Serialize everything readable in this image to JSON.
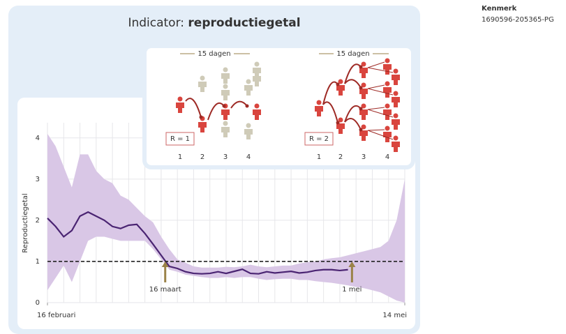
{
  "header": {
    "title": "Indicator:",
    "title_emphasis": "reproductiegetal",
    "ref_label": "Kenmerk",
    "ref": "1690596-205365-PG"
  },
  "diagram": {
    "panels": [
      {
        "span": "15 dagen",
        "r_label": "R = 1",
        "generations": [
          "1",
          "2",
          "3",
          "4"
        ]
      },
      {
        "span": "15 dagen",
        "r_label": "R = 2",
        "generations": [
          "1",
          "2",
          "3",
          "4"
        ]
      }
    ]
  },
  "chart_data": {
    "type": "line",
    "ylabel": "Reproductiegetal",
    "xlim": [
      0,
      88
    ],
    "xticks": [
      {
        "value": 0,
        "label": "16 februari"
      },
      {
        "value": 88,
        "label": "14 mei"
      }
    ],
    "ylim": [
      0,
      4.2
    ],
    "yticks": [
      0,
      1,
      2,
      3,
      4
    ],
    "grid": true,
    "reference_line": 1,
    "annotations": [
      {
        "text": "16 maart",
        "x": 29
      },
      {
        "text": "1 mei",
        "x": 75
      }
    ],
    "series": [
      {
        "color": "#d9c7e6",
        "x": [
          0,
          2,
          4,
          6,
          8,
          10,
          12,
          14,
          16,
          18,
          20,
          22,
          24,
          26,
          28,
          30,
          32,
          34,
          36,
          38,
          40,
          42,
          44,
          46,
          48,
          50,
          52,
          54,
          56,
          58,
          60,
          62,
          64,
          66,
          68,
          70,
          72,
          74,
          76,
          78,
          80,
          82,
          84,
          86,
          88
        ],
        "upper": [
          4.1,
          3.8,
          3.3,
          2.8,
          3.6,
          3.6,
          3.2,
          3.0,
          2.9,
          2.6,
          2.5,
          2.3,
          2.1,
          1.95,
          1.6,
          1.3,
          1.05,
          0.97,
          0.88,
          0.85,
          0.85,
          0.85,
          0.87,
          0.86,
          0.88,
          0.92,
          0.88,
          0.86,
          0.88,
          0.9,
          0.9,
          0.95,
          0.98,
          1.0,
          1.05,
          1.08,
          1.1,
          1.15,
          1.2,
          1.25,
          1.3,
          1.35,
          1.5,
          2.0,
          3.0
        ],
        "lower": [
          0.3,
          0.6,
          0.9,
          0.5,
          1.0,
          1.5,
          1.6,
          1.6,
          1.55,
          1.5,
          1.5,
          1.5,
          1.5,
          1.3,
          1.05,
          0.8,
          0.75,
          0.68,
          0.65,
          0.62,
          0.6,
          0.6,
          0.62,
          0.6,
          0.62,
          0.62,
          0.58,
          0.55,
          0.57,
          0.58,
          0.58,
          0.55,
          0.55,
          0.52,
          0.5,
          0.48,
          0.45,
          0.42,
          0.38,
          0.35,
          0.3,
          0.25,
          0.15,
          0.05,
          0.0
        ]
      },
      {
        "color": "#4a2472",
        "x": [
          0,
          2,
          4,
          6,
          8,
          10,
          12,
          14,
          16,
          18,
          20,
          22,
          24,
          26,
          28,
          30,
          32,
          34,
          36,
          38,
          40,
          42,
          44,
          46,
          48,
          50,
          52,
          54,
          56,
          58,
          60,
          62,
          64,
          66,
          68,
          70,
          72,
          74
        ],
        "values": [
          2.05,
          1.85,
          1.6,
          1.75,
          2.1,
          2.2,
          2.1,
          2.0,
          1.85,
          1.8,
          1.88,
          1.9,
          1.68,
          1.42,
          1.15,
          0.88,
          0.83,
          0.75,
          0.71,
          0.7,
          0.71,
          0.75,
          0.71,
          0.76,
          0.81,
          0.71,
          0.7,
          0.75,
          0.72,
          0.74,
          0.76,
          0.72,
          0.74,
          0.78,
          0.8,
          0.8,
          0.78,
          0.8
        ]
      }
    ]
  }
}
